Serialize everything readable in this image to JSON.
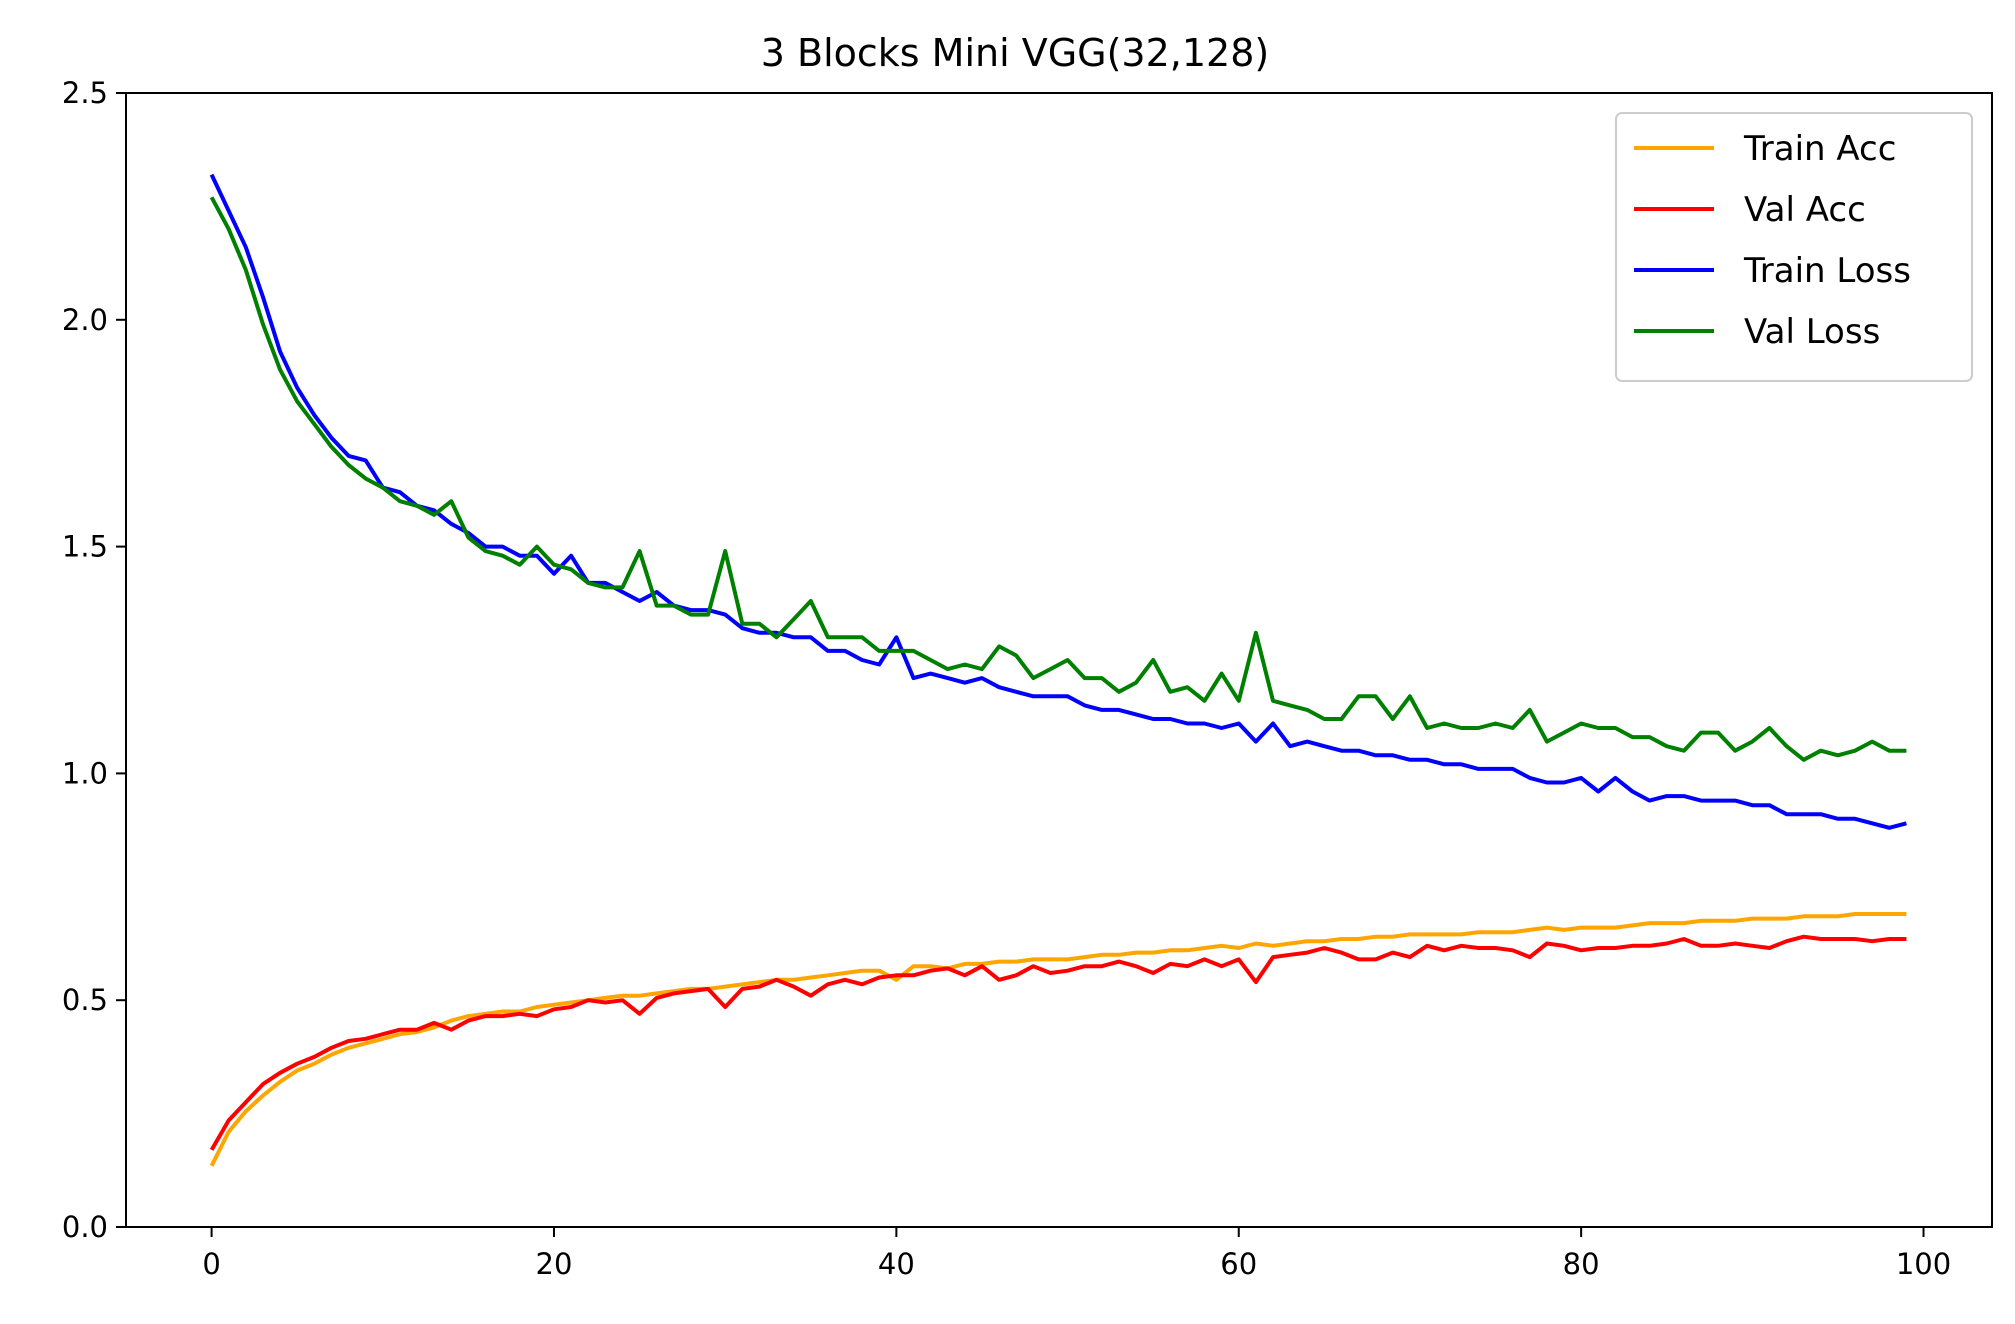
{
  "chart_data": {
    "type": "line",
    "title": "3 Blocks Mini VGG(32,128)",
    "xlabel": "",
    "ylabel": "",
    "xlim": [
      -5,
      104
    ],
    "ylim": [
      0,
      2.5
    ],
    "x_ticks": [
      0,
      20,
      40,
      60,
      80,
      100
    ],
    "y_ticks": [
      0.0,
      0.5,
      1.0,
      1.5,
      2.0,
      2.5
    ],
    "x_tick_labels": [
      "0",
      "20",
      "40",
      "60",
      "80",
      "100"
    ],
    "y_tick_labels": [
      "0.0",
      "0.5",
      "1.0",
      "1.5",
      "2.0",
      "2.5"
    ],
    "grid": false,
    "legend_position": "top-right",
    "series": [
      {
        "name": "Train Acc",
        "color": "#ffa500",
        "values": [
          0.135,
          0.21,
          0.255,
          0.29,
          0.32,
          0.345,
          0.36,
          0.38,
          0.395,
          0.405,
          0.415,
          0.425,
          0.43,
          0.44,
          0.455,
          0.465,
          0.47,
          0.475,
          0.475,
          0.485,
          0.49,
          0.495,
          0.5,
          0.505,
          0.51,
          0.51,
          0.515,
          0.52,
          0.525,
          0.525,
          0.53,
          0.535,
          0.54,
          0.545,
          0.545,
          0.55,
          0.555,
          0.56,
          0.565,
          0.565,
          0.545,
          0.575,
          0.575,
          0.57,
          0.58,
          0.58,
          0.585,
          0.585,
          0.59,
          0.59,
          0.59,
          0.595,
          0.6,
          0.6,
          0.605,
          0.605,
          0.61,
          0.61,
          0.615,
          0.62,
          0.615,
          0.625,
          0.62,
          0.625,
          0.63,
          0.63,
          0.635,
          0.635,
          0.64,
          0.64,
          0.645,
          0.645,
          0.645,
          0.645,
          0.65,
          0.65,
          0.65,
          0.655,
          0.66,
          0.655,
          0.66,
          0.66,
          0.66,
          0.665,
          0.67,
          0.67,
          0.67,
          0.675,
          0.675,
          0.675,
          0.68,
          0.68,
          0.68,
          0.685,
          0.685,
          0.685,
          0.69,
          0.69,
          0.69,
          0.69
        ]
      },
      {
        "name": "Val Acc",
        "color": "#ff0000",
        "values": [
          0.17,
          0.235,
          0.275,
          0.315,
          0.34,
          0.36,
          0.375,
          0.395,
          0.41,
          0.415,
          0.425,
          0.435,
          0.435,
          0.45,
          0.435,
          0.455,
          0.465,
          0.465,
          0.47,
          0.465,
          0.48,
          0.485,
          0.5,
          0.495,
          0.5,
          0.47,
          0.505,
          0.515,
          0.52,
          0.525,
          0.485,
          0.525,
          0.53,
          0.545,
          0.53,
          0.51,
          0.535,
          0.545,
          0.535,
          0.55,
          0.555,
          0.555,
          0.565,
          0.57,
          0.555,
          0.575,
          0.545,
          0.555,
          0.575,
          0.56,
          0.565,
          0.575,
          0.575,
          0.585,
          0.575,
          0.56,
          0.58,
          0.575,
          0.59,
          0.575,
          0.59,
          0.54,
          0.595,
          0.6,
          0.605,
          0.615,
          0.605,
          0.59,
          0.59,
          0.605,
          0.595,
          0.62,
          0.61,
          0.62,
          0.615,
          0.615,
          0.61,
          0.595,
          0.625,
          0.62,
          0.61,
          0.615,
          0.615,
          0.62,
          0.62,
          0.625,
          0.635,
          0.62,
          0.62,
          0.625,
          0.62,
          0.615,
          0.63,
          0.64,
          0.635,
          0.635,
          0.635,
          0.63,
          0.635,
          0.635
        ]
      },
      {
        "name": "Train Loss",
        "color": "#0000ff",
        "values": [
          2.32,
          2.24,
          2.16,
          2.05,
          1.93,
          1.85,
          1.79,
          1.74,
          1.7,
          1.69,
          1.63,
          1.62,
          1.59,
          1.58,
          1.55,
          1.53,
          1.5,
          1.5,
          1.48,
          1.48,
          1.44,
          1.48,
          1.42,
          1.42,
          1.4,
          1.38,
          1.4,
          1.37,
          1.36,
          1.36,
          1.35,
          1.32,
          1.31,
          1.31,
          1.3,
          1.3,
          1.27,
          1.27,
          1.25,
          1.24,
          1.3,
          1.21,
          1.22,
          1.21,
          1.2,
          1.21,
          1.19,
          1.18,
          1.17,
          1.17,
          1.17,
          1.15,
          1.14,
          1.14,
          1.13,
          1.12,
          1.12,
          1.11,
          1.11,
          1.1,
          1.11,
          1.07,
          1.11,
          1.06,
          1.07,
          1.06,
          1.05,
          1.05,
          1.04,
          1.04,
          1.03,
          1.03,
          1.02,
          1.02,
          1.01,
          1.01,
          1.01,
          0.99,
          0.98,
          0.98,
          0.99,
          0.96,
          0.99,
          0.96,
          0.94,
          0.95,
          0.95,
          0.94,
          0.94,
          0.94,
          0.93,
          0.93,
          0.91,
          0.91,
          0.91,
          0.9,
          0.9,
          0.89,
          0.88,
          0.89
        ]
      },
      {
        "name": "Val Loss",
        "color": "#008000",
        "values": [
          2.27,
          2.2,
          2.11,
          1.99,
          1.89,
          1.82,
          1.77,
          1.72,
          1.68,
          1.65,
          1.63,
          1.6,
          1.59,
          1.57,
          1.6,
          1.52,
          1.49,
          1.48,
          1.46,
          1.5,
          1.46,
          1.45,
          1.42,
          1.41,
          1.41,
          1.49,
          1.37,
          1.37,
          1.35,
          1.35,
          1.49,
          1.33,
          1.33,
          1.3,
          1.34,
          1.38,
          1.3,
          1.3,
          1.3,
          1.27,
          1.27,
          1.27,
          1.25,
          1.23,
          1.24,
          1.23,
          1.28,
          1.26,
          1.21,
          1.23,
          1.25,
          1.21,
          1.21,
          1.18,
          1.2,
          1.25,
          1.18,
          1.19,
          1.16,
          1.22,
          1.16,
          1.31,
          1.16,
          1.15,
          1.14,
          1.12,
          1.12,
          1.17,
          1.17,
          1.12,
          1.17,
          1.1,
          1.11,
          1.1,
          1.1,
          1.11,
          1.1,
          1.14,
          1.07,
          1.09,
          1.11,
          1.1,
          1.1,
          1.08,
          1.08,
          1.06,
          1.05,
          1.09,
          1.09,
          1.05,
          1.07,
          1.1,
          1.06,
          1.03,
          1.05,
          1.04,
          1.05,
          1.07,
          1.05,
          1.05
        ]
      }
    ]
  }
}
